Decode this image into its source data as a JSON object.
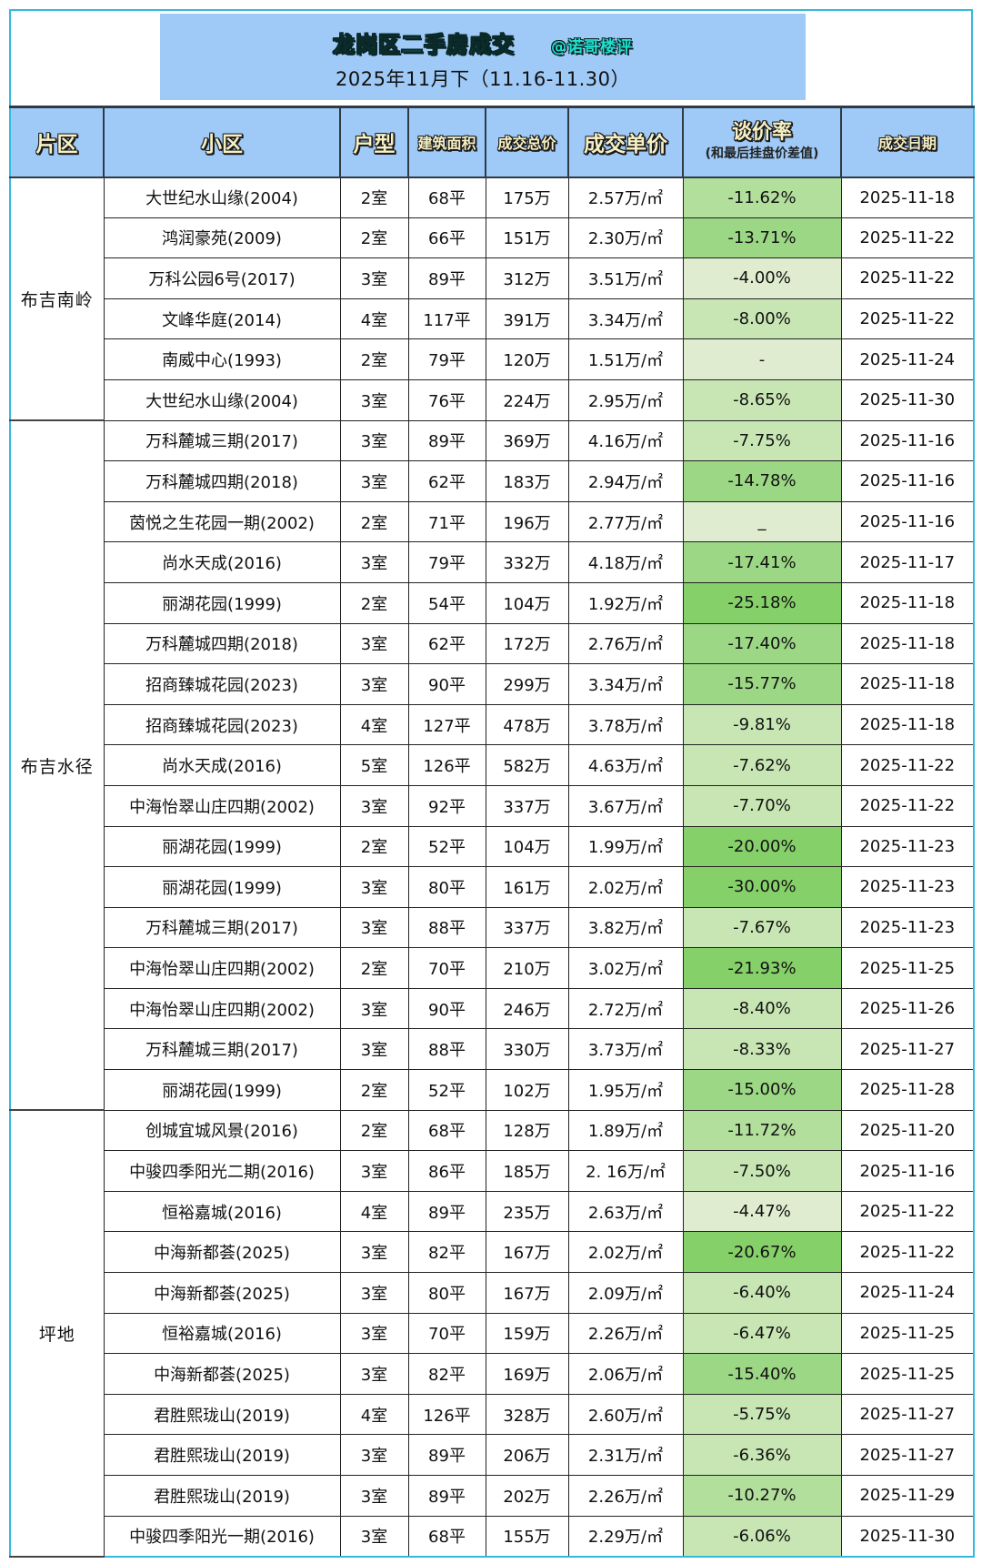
{
  "title": {
    "main": "龙岗区二手房成交",
    "handle": "@诺哥楼评",
    "subtitle": "2025年11月下（11.16-11.30）"
  },
  "table": {
    "headers": {
      "area": "片区",
      "name": "小区",
      "type": "户型",
      "size": "建筑面积",
      "total": "成交总价",
      "unit": "成交单价",
      "rate": "谈价率",
      "rate_sub": "(和最后挂盘价差值)",
      "date": "成交日期"
    },
    "unit_suffix": "万/m²",
    "rate_colors": {
      "light": "#dfeccf",
      "pale": "#c8e6b4",
      "mid": "#b3df9c",
      "strong": "#9bd784",
      "deep": "#86d06a"
    },
    "groups": [
      {
        "area": "布吉南岭",
        "rows": [
          {
            "name": "大世纪水山缘(2004)",
            "type": "2室",
            "size": "68平",
            "total": "175万",
            "unit": "2.57万/㎡",
            "rate": "-11.62%",
            "shade": "mid",
            "date": "2025-11-18"
          },
          {
            "name": "鸿润豪苑(2009)",
            "type": "2室",
            "size": "66平",
            "total": "151万",
            "unit": "2.30万/㎡",
            "rate": "-13.71%",
            "shade": "strong",
            "date": "2025-11-22"
          },
          {
            "name": "万科公园6号(2017)",
            "type": "3室",
            "size": "89平",
            "total": "312万",
            "unit": "3.51万/㎡",
            "rate": "-4.00%",
            "shade": "light",
            "date": "2025-11-22"
          },
          {
            "name": "文峰华庭(2014)",
            "type": "4室",
            "size": "117平",
            "total": "391万",
            "unit": "3.34万/㎡",
            "rate": "-8.00%",
            "shade": "pale",
            "date": "2025-11-22"
          },
          {
            "name": "南威中心(1993)",
            "type": "2室",
            "size": "79平",
            "total": "120万",
            "unit": "1.51万/㎡",
            "rate": "-",
            "shade": "light",
            "date": "2025-11-24"
          },
          {
            "name": "大世纪水山缘(2004)",
            "type": "3室",
            "size": "76平",
            "total": "224万",
            "unit": "2.95万/㎡",
            "rate": "-8.65%",
            "shade": "pale",
            "date": "2025-11-30"
          }
        ]
      },
      {
        "area": "布吉水径",
        "rows": [
          {
            "name": "万科麓城三期(2017)",
            "type": "3室",
            "size": "89平",
            "total": "369万",
            "unit": "4.16万/㎡",
            "rate": "-7.75%",
            "shade": "pale",
            "date": "2025-11-16"
          },
          {
            "name": "万科麓城四期(2018)",
            "type": "3室",
            "size": "62平",
            "total": "183万",
            "unit": "2.94万/㎡",
            "rate": "-14.78%",
            "shade": "strong",
            "date": "2025-11-16"
          },
          {
            "name": "茵悦之生花园一期(2002)",
            "type": "2室",
            "size": "71平",
            "total": "196万",
            "unit": "2.77万/㎡",
            "rate": "_",
            "shade": "light",
            "date": "2025-11-16"
          },
          {
            "name": "尚水天成(2016)",
            "type": "3室",
            "size": "79平",
            "total": "332万",
            "unit": "4.18万/㎡",
            "rate": "-17.41%",
            "shade": "strong",
            "date": "2025-11-17"
          },
          {
            "name": "丽湖花园(1999)",
            "type": "2室",
            "size": "54平",
            "total": "104万",
            "unit": "1.92万/㎡",
            "rate": "-25.18%",
            "shade": "deep",
            "date": "2025-11-18"
          },
          {
            "name": "万科麓城四期(2018)",
            "type": "3室",
            "size": "62平",
            "total": "172万",
            "unit": "2.76万/㎡",
            "rate": "-17.40%",
            "shade": "strong",
            "date": "2025-11-18"
          },
          {
            "name": "招商臻城花园(2023)",
            "type": "3室",
            "size": "90平",
            "total": "299万",
            "unit": "3.34万/㎡",
            "rate": "-15.77%",
            "shade": "strong",
            "date": "2025-11-18"
          },
          {
            "name": "招商臻城花园(2023)",
            "type": "4室",
            "size": "127平",
            "total": "478万",
            "unit": "3.78万/㎡",
            "rate": "-9.81%",
            "shade": "pale",
            "date": "2025-11-18"
          },
          {
            "name": "尚水天成(2016)",
            "type": "5室",
            "size": "126平",
            "total": "582万",
            "unit": "4.63万/㎡",
            "rate": "-7.62%",
            "shade": "pale",
            "date": "2025-11-22"
          },
          {
            "name": "中海怡翠山庄四期(2002)",
            "type": "3室",
            "size": "92平",
            "total": "337万",
            "unit": "3.67万/㎡",
            "rate": "-7.70%",
            "shade": "pale",
            "date": "2025-11-22"
          },
          {
            "name": "丽湖花园(1999)",
            "type": "2室",
            "size": "52平",
            "total": "104万",
            "unit": "1.99万/㎡",
            "rate": "-20.00%",
            "shade": "deep",
            "date": "2025-11-23"
          },
          {
            "name": "丽湖花园(1999)",
            "type": "3室",
            "size": "80平",
            "total": "161万",
            "unit": "2.02万/㎡",
            "rate": "-30.00%",
            "shade": "deep",
            "date": "2025-11-23"
          },
          {
            "name": "万科麓城三期(2017)",
            "type": "3室",
            "size": "88平",
            "total": "337万",
            "unit": "3.82万/㎡",
            "rate": "-7.67%",
            "shade": "pale",
            "date": "2025-11-23"
          },
          {
            "name": "中海怡翠山庄四期(2002)",
            "type": "2室",
            "size": "70平",
            "total": "210万",
            "unit": "3.02万/㎡",
            "rate": "-21.93%",
            "shade": "deep",
            "date": "2025-11-25"
          },
          {
            "name": "中海怡翠山庄四期(2002)",
            "type": "3室",
            "size": "90平",
            "total": "246万",
            "unit": "2.72万/㎡",
            "rate": "-8.40%",
            "shade": "pale",
            "date": "2025-11-26"
          },
          {
            "name": "万科麓城三期(2017)",
            "type": "3室",
            "size": "88平",
            "total": "330万",
            "unit": "3.73万/㎡",
            "rate": "-8.33%",
            "shade": "pale",
            "date": "2025-11-27"
          },
          {
            "name": "丽湖花园(1999)",
            "type": "2室",
            "size": "52平",
            "total": "102万",
            "unit": "1.95万/㎡",
            "rate": "-15.00%",
            "shade": "strong",
            "date": "2025-11-28"
          }
        ]
      },
      {
        "area": "坪地",
        "rows": [
          {
            "name": "创城宜城风景(2016)",
            "type": "2室",
            "size": "68平",
            "total": "128万",
            "unit": "1.89万/㎡",
            "rate": "-11.72%",
            "shade": "mid",
            "date": "2025-11-20"
          },
          {
            "name": "中骏四季阳光二期(2016)",
            "type": "3室",
            "size": "86平",
            "total": "185万",
            "unit": "2. 16万/㎡",
            "rate": "-7.50%",
            "shade": "pale",
            "date": "2025-11-16"
          },
          {
            "name": "恒裕嘉城(2016)",
            "type": "4室",
            "size": "89平",
            "total": "235万",
            "unit": "2.63万/㎡",
            "rate": "-4.47%",
            "shade": "light",
            "date": "2025-11-22"
          },
          {
            "name": "中海新都荟(2025)",
            "type": "3室",
            "size": "82平",
            "total": "167万",
            "unit": "2.02万/㎡",
            "rate": "-20.67%",
            "shade": "deep",
            "date": "2025-11-22"
          },
          {
            "name": "中海新都荟(2025)",
            "type": "3室",
            "size": "80平",
            "total": "167万",
            "unit": "2.09万/㎡",
            "rate": "-6.40%",
            "shade": "pale",
            "date": "2025-11-24"
          },
          {
            "name": "恒裕嘉城(2016)",
            "type": "3室",
            "size": "70平",
            "total": "159万",
            "unit": "2.26万/㎡",
            "rate": "-6.47%",
            "shade": "pale",
            "date": "2025-11-25"
          },
          {
            "name": "中海新都荟(2025)",
            "type": "3室",
            "size": "82平",
            "total": "169万",
            "unit": "2.06万/㎡",
            "rate": "-15.40%",
            "shade": "strong",
            "date": "2025-11-25"
          },
          {
            "name": "君胜熙珑山(2019)",
            "type": "4室",
            "size": "126平",
            "total": "328万",
            "unit": "2.60万/㎡",
            "rate": "-5.75%",
            "shade": "pale",
            "date": "2025-11-27"
          },
          {
            "name": "君胜熙珑山(2019)",
            "type": "3室",
            "size": "89平",
            "total": "206万",
            "unit": "2.31万/㎡",
            "rate": "-6.36%",
            "shade": "pale",
            "date": "2025-11-27"
          },
          {
            "name": "君胜熙珑山(2019)",
            "type": "3室",
            "size": "89平",
            "total": "202万",
            "unit": "2.26万/㎡",
            "rate": "-10.27%",
            "shade": "mid",
            "date": "2025-11-29"
          },
          {
            "name": "中骏四季阳光一期(2016)",
            "type": "3室",
            "size": "68平",
            "total": "155万",
            "unit": "2.29万/㎡",
            "rate": "-6.06%",
            "shade": "pale",
            "date": "2025-11-30"
          }
        ]
      }
    ]
  }
}
